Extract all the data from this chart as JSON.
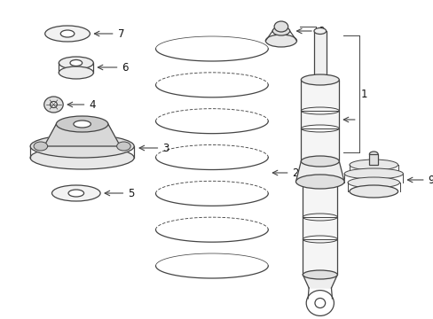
{
  "bg_color": "#ffffff",
  "line_color": "#444444",
  "label_color": "#111111",
  "fig_w": 4.89,
  "fig_h": 3.6,
  "dpi": 100
}
